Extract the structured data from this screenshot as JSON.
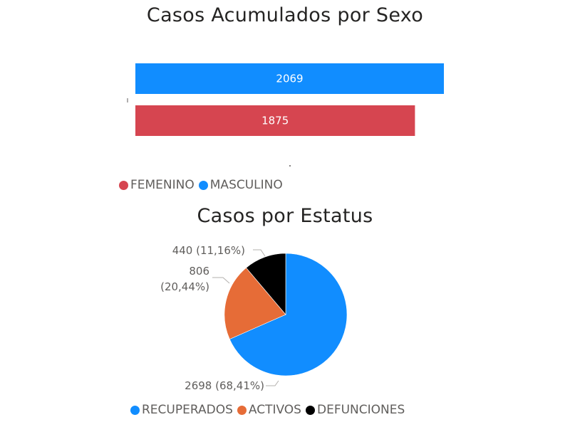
{
  "charts": {
    "bar": {
      "title": "Casos Acumulados por Sexo"
    },
    "pie": {
      "title": "Casos por Estatus"
    }
  },
  "colors": {
    "masculino": "#118dff",
    "femenino": "#d64550",
    "recuperados": "#118dff",
    "activos": "#e66c37",
    "defunciones": "#000000",
    "leader": "#b3b0ad"
  },
  "chart_data": [
    {
      "type": "bar",
      "orientation": "horizontal",
      "title": "Casos Acumulados por Sexo",
      "categories": [
        "MASCULINO",
        "FEMENINO"
      ],
      "values": [
        2069,
        1875
      ],
      "data_labels": [
        "2069",
        "1875"
      ],
      "xlim": [
        0,
        2069
      ],
      "grid": false,
      "legend": {
        "position": "bottom-left",
        "entries": [
          "FEMENINO",
          "MASCULINO"
        ]
      }
    },
    {
      "type": "pie",
      "title": "Casos por Estatus",
      "categories": [
        "RECUPERADOS",
        "ACTIVOS",
        "DEFUNCIONES"
      ],
      "values": [
        2698,
        806,
        440
      ],
      "data_labels": [
        "2698 (68,41%)",
        "806 (20,44%)",
        "440 (11,16%)"
      ],
      "legend": {
        "position": "bottom",
        "entries": [
          "RECUPERADOS",
          "ACTIVOS",
          "DEFUNCIONES"
        ]
      }
    }
  ]
}
